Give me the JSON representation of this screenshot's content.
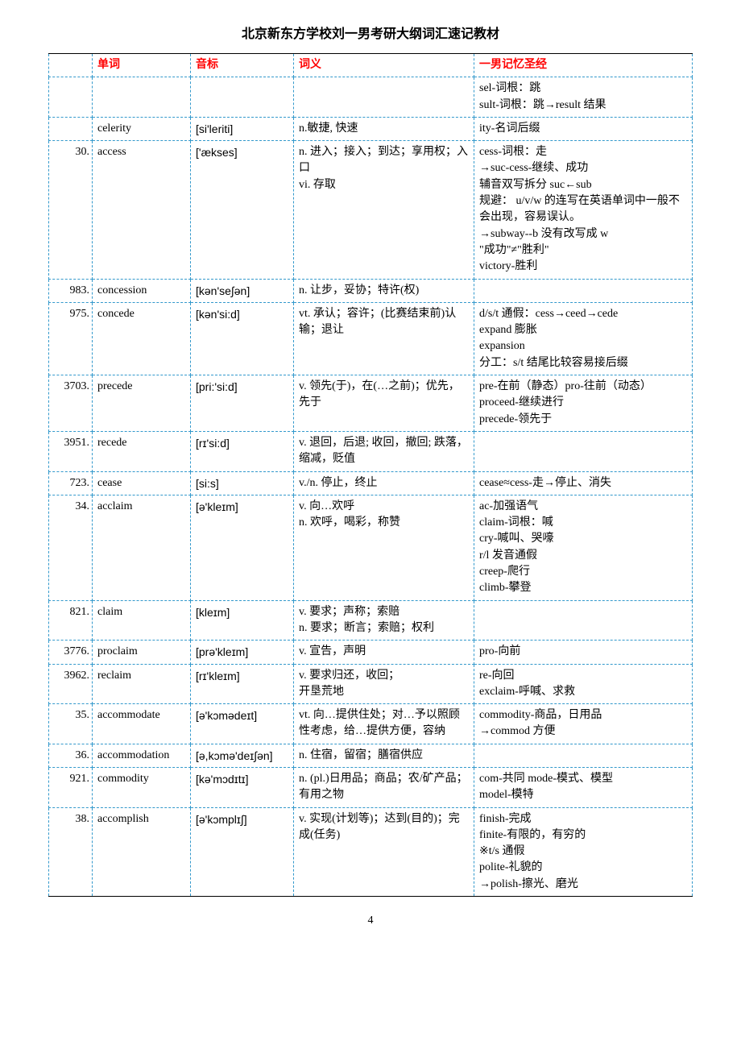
{
  "title": "北京新东方学校刘一男考研大纲词汇速记教材",
  "page_number": "4",
  "headers": {
    "num": "",
    "word": "单词",
    "phonetic": "音标",
    "meaning": "词义",
    "mnemonic": "一男记忆圣经"
  },
  "style": {
    "header_color": "#ff0000",
    "border_color": "#3399cc",
    "background": "#ffffff",
    "text_color": "#000000",
    "title_fontsize": 16,
    "cell_fontsize": 14
  },
  "rows": [
    {
      "num": "",
      "word": "",
      "phonetic": "",
      "meaning": "",
      "mnemonic": "sel-词根：跳\nsult-词根：跳→result 结果"
    },
    {
      "num": "",
      "word": "celerity",
      "phonetic": "[si'leriti]",
      "meaning": "n.敏捷, 快速",
      "mnemonic": "ity-名词后缀"
    },
    {
      "num": "30.",
      "word": "access",
      "phonetic": "['ækses]",
      "meaning": "n. 进入；接入；到达；享用权；入口\nvi. 存取",
      "mnemonic": "cess-词根：走\n→suc-cess-继续、成功\n辅音双写拆分 suc←sub\n规避： u/v/w 的连写在英语单词中一般不会出现，容易误认。\n→subway--b 没有改写成 w\n\"成功\"≠\"胜利\"\nvictory-胜利"
    },
    {
      "num": "983.",
      "word": "concession",
      "phonetic": "[kən'se∫ən]",
      "meaning": "n. 让步，妥协；特许(权)",
      "mnemonic": ""
    },
    {
      "num": "975.",
      "word": "concede",
      "phonetic": "[kən'si:d]",
      "meaning": "vt. 承认；容许；(比赛结束前)认输；退让",
      "mnemonic": "d/s/t 通假：cess→ceed→cede\nexpand 膨胀\nexpansion\n分工：s/t 结尾比较容易接后缀"
    },
    {
      "num": "3703.",
      "word": "precede",
      "phonetic": "[pri:'si:d]",
      "meaning": "v. 领先(于)，在(…之前)；优先，先于",
      "mnemonic": "pre-在前（静态）pro-往前（动态）\nproceed-继续进行\nprecede-领先于"
    },
    {
      "num": "3951.",
      "word": "recede",
      "phonetic": "[rɪ'si:d]",
      "meaning": "v. 退回，后退; 收回，撤回; 跌落，缩减，贬值",
      "mnemonic": ""
    },
    {
      "num": "723.",
      "word": "cease",
      "phonetic": "[si:s]",
      "meaning": "v./n. 停止，终止",
      "mnemonic": "cease≈cess-走→停止、消失"
    },
    {
      "num": "34.",
      "word": "acclaim",
      "phonetic": "[ə'kleɪm]",
      "meaning": "v. 向…欢呼\nn. 欢呼，喝彩，称赞",
      "mnemonic": "ac-加强语气\nclaim-词根：喊\ncry-喊叫、哭嚎\nr/l 发音通假\ncreep-爬行\nclimb-攀登"
    },
    {
      "num": "821.",
      "word": "claim",
      "phonetic": "[kleɪm]",
      "meaning": "v. 要求；声称；索赔\nn. 要求；断言；索赔；权利",
      "mnemonic": ""
    },
    {
      "num": "3776.",
      "word": "proclaim",
      "phonetic": "[prə'kleɪm]",
      "meaning": "v. 宣告，声明",
      "mnemonic": "pro-向前"
    },
    {
      "num": "3962.",
      "word": "reclaim",
      "phonetic": "[rɪ'kleɪm]",
      "meaning": "v. 要求归还，收回；\n开垦荒地",
      "mnemonic": "re-向回\nexclaim-呼喊、求救"
    },
    {
      "num": "35.",
      "word": "accommodate",
      "phonetic": "[ə'kɔmədeɪt]",
      "meaning": "vt. 向…提供住处；对…予以照顾性考虑，给…提供方便，容纳",
      "mnemonic": "commodity-商品，日用品\n→commod 方便"
    },
    {
      "num": "36.",
      "word": "accommodation",
      "phonetic": "[ə,kɔmə'deɪ∫ən]",
      "meaning": "n. 住宿，留宿；膳宿供应",
      "mnemonic": ""
    },
    {
      "num": "921.",
      "word": "commodity",
      "phonetic": "[kə'mɔdɪtɪ]",
      "meaning": "n. (pl.)日用品；商品；农/矿产品；有用之物",
      "mnemonic": "com-共同     mode-模式、模型\nmodel-模特"
    },
    {
      "num": "38.",
      "word": "accomplish",
      "phonetic": "[ə'kɔmplɪ∫]",
      "meaning": "v. 实现(计划等)；达到(目的)；完成(任务)",
      "mnemonic": "finish-完成\nfinite-有限的，有穷的\n※t/s 通假\npolite-礼貌的\n→polish-擦光、磨光"
    }
  ]
}
